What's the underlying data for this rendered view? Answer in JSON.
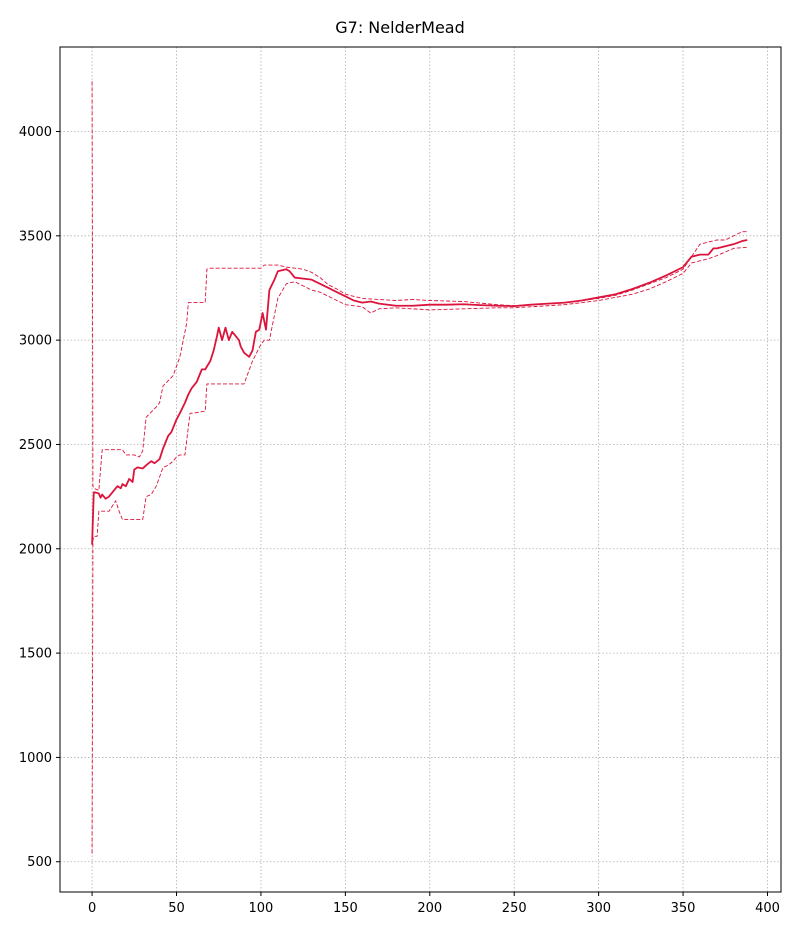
{
  "chart_data": {
    "type": "line",
    "title": "G7: NelderMead",
    "xlabel": "",
    "ylabel": "",
    "xlim": [
      -19,
      408
    ],
    "ylim": [
      355,
      4405
    ],
    "xticks": [
      0,
      50,
      100,
      150,
      200,
      250,
      300,
      350,
      400
    ],
    "yticks": [
      500,
      1000,
      1500,
      2000,
      2500,
      3000,
      3500,
      4000
    ],
    "grid": true,
    "colors": {
      "series": "#dc143c",
      "grid": "#b0b0b0"
    },
    "series": [
      {
        "role": "mean",
        "style": "solid",
        "x": [
          0,
          1,
          2,
          4,
          5,
          6,
          8,
          10,
          12,
          15,
          17,
          18,
          20,
          22,
          24,
          25,
          27,
          30,
          32,
          35,
          37,
          40,
          42,
          45,
          47,
          50,
          52,
          55,
          57,
          59,
          60,
          62,
          65,
          67,
          70,
          72,
          74,
          75,
          77,
          79,
          81,
          83,
          85,
          87,
          88,
          90,
          93,
          95,
          97,
          99,
          101,
          103,
          105,
          108,
          110,
          115,
          117,
          120,
          125,
          130,
          135,
          140,
          145,
          150,
          155,
          160,
          165,
          170,
          180,
          190,
          200,
          210,
          220,
          230,
          240,
          250,
          260,
          270,
          280,
          290,
          300,
          310,
          320,
          330,
          340,
          350,
          355,
          360,
          365,
          368,
          370,
          375,
          380,
          385,
          388
        ],
        "y": [
          2020,
          2270,
          2270,
          2265,
          2245,
          2260,
          2240,
          2250,
          2270,
          2300,
          2290,
          2310,
          2300,
          2335,
          2320,
          2380,
          2390,
          2385,
          2400,
          2420,
          2410,
          2430,
          2480,
          2540,
          2560,
          2620,
          2650,
          2700,
          2740,
          2770,
          2780,
          2800,
          2860,
          2860,
          2900,
          2950,
          3020,
          3060,
          3000,
          3060,
          3000,
          3040,
          3020,
          3000,
          2970,
          2940,
          2920,
          2950,
          3040,
          3050,
          3130,
          3050,
          3240,
          3290,
          3330,
          3340,
          3330,
          3300,
          3295,
          3290,
          3270,
          3250,
          3230,
          3210,
          3190,
          3180,
          3185,
          3175,
          3165,
          3165,
          3170,
          3170,
          3172,
          3168,
          3165,
          3163,
          3170,
          3175,
          3180,
          3190,
          3205,
          3220,
          3245,
          3275,
          3310,
          3350,
          3400,
          3410,
          3410,
          3440,
          3440,
          3450,
          3460,
          3475,
          3480
        ]
      },
      {
        "role": "upper",
        "style": "dashed",
        "x": [
          0,
          0.5,
          1,
          4,
          6,
          8,
          12,
          14,
          18,
          20,
          25,
          28,
          30,
          32,
          38,
          40,
          42,
          48,
          52,
          56,
          57,
          60,
          67,
          68,
          70,
          80,
          90,
          100,
          102,
          110,
          115,
          120,
          125,
          130,
          135,
          140,
          145,
          150,
          160,
          170,
          180,
          190,
          200,
          220,
          240,
          250,
          260,
          280,
          300,
          310,
          320,
          330,
          340,
          350,
          355,
          360,
          365,
          370,
          375,
          385,
          388
        ],
        "y": [
          4240,
          2300,
          2290,
          2280,
          2475,
          2475,
          2475,
          2475,
          2475,
          2450,
          2450,
          2440,
          2470,
          2630,
          2680,
          2700,
          2780,
          2830,
          2920,
          3080,
          3180,
          3180,
          3180,
          3340,
          3345,
          3345,
          3345,
          3345,
          3360,
          3360,
          3350,
          3345,
          3340,
          3325,
          3300,
          3265,
          3245,
          3220,
          3200,
          3195,
          3190,
          3195,
          3190,
          3185,
          3170,
          3165,
          3170,
          3180,
          3200,
          3215,
          3240,
          3270,
          3300,
          3340,
          3400,
          3460,
          3470,
          3480,
          3480,
          3520,
          3520
        ]
      },
      {
        "role": "lower",
        "style": "dashed",
        "x": [
          0,
          0.5,
          1,
          3,
          4,
          6,
          10,
          14,
          16,
          18,
          20,
          22,
          25,
          28,
          30,
          32,
          35,
          38,
          42,
          45,
          48,
          50,
          52,
          55,
          58,
          60,
          67,
          68,
          70,
          80,
          90,
          95,
          100,
          102,
          105,
          110,
          115,
          120,
          125,
          130,
          135,
          140,
          145,
          150,
          160,
          165,
          170,
          180,
          200,
          220,
          240,
          250,
          260,
          280,
          300,
          310,
          320,
          330,
          340,
          350,
          355,
          360,
          365,
          370,
          380,
          388
        ],
        "y": [
          540,
          2040,
          2060,
          2060,
          2180,
          2180,
          2180,
          2230,
          2180,
          2140,
          2140,
          2140,
          2140,
          2140,
          2140,
          2250,
          2260,
          2300,
          2390,
          2400,
          2420,
          2440,
          2450,
          2450,
          2650,
          2650,
          2660,
          2790,
          2790,
          2790,
          2790,
          2900,
          2980,
          3000,
          3000,
          3200,
          3270,
          3280,
          3260,
          3240,
          3230,
          3210,
          3190,
          3170,
          3160,
          3130,
          3150,
          3155,
          3145,
          3150,
          3155,
          3155,
          3160,
          3170,
          3190,
          3205,
          3220,
          3245,
          3280,
          3320,
          3370,
          3380,
          3390,
          3405,
          3440,
          3445
        ]
      }
    ]
  }
}
